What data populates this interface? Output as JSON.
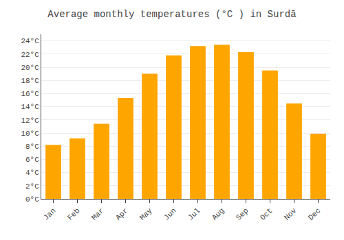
{
  "chart_data": {
    "type": "bar",
    "title": "Average monthly temperatures (°C ) in Surdā",
    "categories": [
      "Jan",
      "Feb",
      "Mar",
      "Apr",
      "May",
      "Jun",
      "Jul",
      "Aug",
      "Sep",
      "Oct",
      "Nov",
      "Dec"
    ],
    "values": [
      8.2,
      9.2,
      11.4,
      15.3,
      19.0,
      21.8,
      23.2,
      23.4,
      22.3,
      19.5,
      14.5,
      9.9
    ],
    "color": "#FFA500",
    "ylim": [
      0,
      25
    ],
    "yticks": [
      {
        "value": 0,
        "label": "0°C"
      },
      {
        "value": 2,
        "label": "2°C"
      },
      {
        "value": 4,
        "label": "4°C"
      },
      {
        "value": 6,
        "label": "6°C"
      },
      {
        "value": 8,
        "label": "8°C"
      },
      {
        "value": 10,
        "label": "10°C"
      },
      {
        "value": 12,
        "label": "12°C"
      },
      {
        "value": 14,
        "label": "14°C"
      },
      {
        "value": 16,
        "label": "16°C"
      },
      {
        "value": 18,
        "label": "18°C"
      },
      {
        "value": 20,
        "label": "20°C"
      },
      {
        "value": 22,
        "label": "22°C"
      },
      {
        "value": 24,
        "label": "24°C"
      }
    ],
    "grid": true
  }
}
